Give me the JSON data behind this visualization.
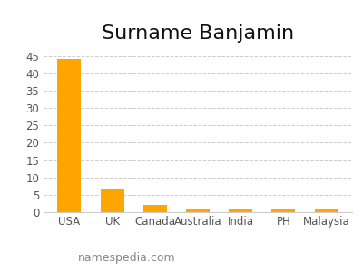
{
  "title": "Surname Banjamin",
  "categories": [
    "USA",
    "UK",
    "Canada",
    "Australia",
    "India",
    "PH",
    "Malaysia"
  ],
  "values": [
    44,
    6.5,
    2,
    1,
    1,
    1,
    1
  ],
  "bar_color": "#FFA500",
  "ylim": [
    0,
    47
  ],
  "yticks": [
    0,
    5,
    10,
    15,
    20,
    25,
    30,
    35,
    40,
    45
  ],
  "grid_color": "#cccccc",
  "background_color": "#ffffff",
  "title_fontsize": 16,
  "tick_fontsize": 8.5,
  "watermark": "namespedia.com",
  "watermark_fontsize": 9
}
